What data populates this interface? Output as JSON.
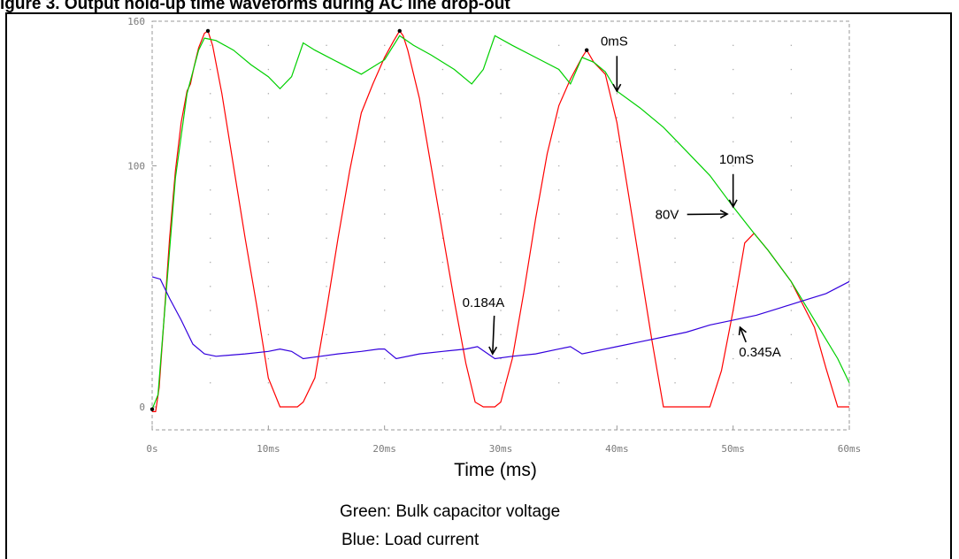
{
  "figure": {
    "heading": "igure 3. Output hold-up time waveforms during AC line drop-out",
    "legend_lines": [
      "Green: Bulk capacitor voltage",
      "Blue: Load current"
    ]
  },
  "chart_data": {
    "type": "line",
    "xlabel": "Time (ms)",
    "ylabel": "",
    "xlim": [
      0,
      60
    ],
    "ylim": [
      -5,
      160
    ],
    "x_ticks": [
      0,
      10,
      20,
      30,
      40,
      50,
      60
    ],
    "x_tick_labels": [
      "0s",
      "10ms",
      "20ms",
      "30ms",
      "40ms",
      "50ms",
      "60ms"
    ],
    "y_ticks": [
      0,
      100,
      160
    ],
    "y_tick_labels": [
      "0",
      "100",
      "160"
    ],
    "grid": true,
    "colors": {
      "rectified": "#ff0000",
      "bulk": "#00d000",
      "current": "#3300dd",
      "frame": "#999999",
      "grid": "#aaaaaa"
    },
    "series": [
      {
        "key": "rectified",
        "points": [
          [
            0,
            -2
          ],
          [
            0.3,
            -2
          ],
          [
            0.6,
            8
          ],
          [
            1.0,
            35
          ],
          [
            1.5,
            70
          ],
          [
            2.0,
            98
          ],
          [
            2.5,
            118
          ],
          [
            3.0,
            131
          ],
          [
            3.3,
            134
          ],
          [
            3.6,
            141
          ],
          [
            4.0,
            149
          ],
          [
            4.5,
            155
          ],
          [
            4.8,
            156
          ],
          [
            5.2,
            150
          ],
          [
            6.0,
            130
          ],
          [
            7.0,
            100
          ],
          [
            8.0,
            70
          ],
          [
            9.0,
            42
          ],
          [
            10.0,
            12
          ],
          [
            11.0,
            0
          ],
          [
            12.0,
            0
          ],
          [
            12.5,
            0
          ],
          [
            13.0,
            2
          ],
          [
            14.0,
            12
          ],
          [
            15.0,
            40
          ],
          [
            16.0,
            70
          ],
          [
            17.0,
            98
          ],
          [
            18.0,
            122
          ],
          [
            19.0,
            134
          ],
          [
            20.0,
            145
          ],
          [
            20.8,
            152
          ],
          [
            21.3,
            156
          ],
          [
            21.6,
            154
          ],
          [
            22.0,
            148
          ],
          [
            23.0,
            128
          ],
          [
            24.0,
            100
          ],
          [
            25.0,
            72
          ],
          [
            26.0,
            44
          ],
          [
            27.0,
            18
          ],
          [
            27.8,
            2
          ],
          [
            28.5,
            0
          ],
          [
            29.5,
            0
          ],
          [
            30.0,
            2
          ],
          [
            31.0,
            20
          ],
          [
            32.0,
            48
          ],
          [
            33.0,
            78
          ],
          [
            34.0,
            105
          ],
          [
            35.0,
            125
          ],
          [
            36.0,
            136
          ],
          [
            37.0,
            145
          ],
          [
            37.4,
            148
          ],
          [
            38.0,
            143
          ],
          [
            39.0,
            138
          ],
          [
            40.0,
            118
          ],
          [
            41.0,
            88
          ],
          [
            42.0,
            58
          ],
          [
            43.0,
            28
          ],
          [
            44.0,
            0
          ],
          [
            44.5,
            0
          ],
          [
            48.0,
            0
          ],
          [
            49.0,
            15
          ],
          [
            50.0,
            40
          ],
          [
            51.0,
            68
          ],
          [
            51.8,
            72
          ],
          [
            53.0,
            65
          ],
          [
            55.0,
            52
          ],
          [
            57.0,
            33
          ],
          [
            58.0,
            16
          ],
          [
            59.0,
            0
          ],
          [
            60.0,
            0
          ]
        ]
      },
      {
        "key": "bulk",
        "points": [
          [
            0,
            -1
          ],
          [
            0.5,
            5
          ],
          [
            1.0,
            35
          ],
          [
            2.0,
            95
          ],
          [
            3.0,
            130
          ],
          [
            4.0,
            148
          ],
          [
            4.5,
            153
          ],
          [
            5.5,
            152
          ],
          [
            7.0,
            148
          ],
          [
            8.5,
            142
          ],
          [
            10.0,
            137
          ],
          [
            11.0,
            132
          ],
          [
            12.0,
            137
          ],
          [
            13.0,
            151
          ],
          [
            14.0,
            148
          ],
          [
            16.0,
            143
          ],
          [
            18.0,
            138
          ],
          [
            20.0,
            144
          ],
          [
            21.3,
            154
          ],
          [
            22.5,
            150
          ],
          [
            24.0,
            146
          ],
          [
            26.0,
            140
          ],
          [
            27.5,
            134
          ],
          [
            28.5,
            140
          ],
          [
            29.5,
            154
          ],
          [
            31.0,
            150
          ],
          [
            33.0,
            145
          ],
          [
            35.0,
            140
          ],
          [
            36.0,
            134
          ],
          [
            37.0,
            145
          ],
          [
            38.0,
            143
          ],
          [
            39.0,
            139
          ],
          [
            40.0,
            131
          ],
          [
            42.0,
            124
          ],
          [
            44.0,
            116
          ],
          [
            46.0,
            106
          ],
          [
            48.0,
            96
          ],
          [
            50.0,
            83
          ],
          [
            51.8,
            72
          ],
          [
            53.0,
            65
          ],
          [
            55.0,
            52
          ],
          [
            57.0,
            36
          ],
          [
            58.0,
            28
          ],
          [
            59.0,
            20
          ],
          [
            60.0,
            10
          ]
        ]
      },
      {
        "key": "current",
        "points": [
          [
            0,
            54
          ],
          [
            0.7,
            53
          ],
          [
            1.5,
            45
          ],
          [
            2.5,
            36
          ],
          [
            3.5,
            26
          ],
          [
            4.5,
            22
          ],
          [
            5.5,
            21
          ],
          [
            8.0,
            22
          ],
          [
            10.0,
            23
          ],
          [
            11.0,
            24
          ],
          [
            12.0,
            23
          ],
          [
            13.0,
            20
          ],
          [
            14.5,
            21
          ],
          [
            16.0,
            22
          ],
          [
            18.0,
            23
          ],
          [
            19.5,
            24
          ],
          [
            20.0,
            24
          ],
          [
            21.0,
            20
          ],
          [
            23.0,
            22
          ],
          [
            25.0,
            23
          ],
          [
            27.0,
            24
          ],
          [
            28.0,
            25
          ],
          [
            29.5,
            20
          ],
          [
            31.0,
            21
          ],
          [
            33.0,
            22
          ],
          [
            35.0,
            24
          ],
          [
            36.0,
            25
          ],
          [
            37.0,
            22
          ],
          [
            38.0,
            23
          ],
          [
            40.0,
            25
          ],
          [
            42.0,
            27
          ],
          [
            44.0,
            29
          ],
          [
            46.0,
            31
          ],
          [
            48.0,
            34
          ],
          [
            50.0,
            36
          ],
          [
            52.0,
            38
          ],
          [
            54.0,
            41
          ],
          [
            56.0,
            44
          ],
          [
            58.0,
            47
          ],
          [
            60.0,
            52
          ]
        ]
      }
    ],
    "endpoint_marks": [
      [
        0,
        -1
      ],
      [
        4.8,
        156
      ],
      [
        21.3,
        156
      ],
      [
        37.4,
        148
      ]
    ],
    "annotations": [
      {
        "text": "0mS",
        "x": 38.6,
        "y": 150,
        "arrow_to": [
          40.0,
          131
        ]
      },
      {
        "text": "10mS",
        "x": 48.8,
        "y": 101,
        "arrow_to": [
          50.0,
          83
        ]
      },
      {
        "text": "80V",
        "x": 43.3,
        "y": 78,
        "arrow_to": [
          49.5,
          80
        ]
      },
      {
        "text": "0.184A",
        "x": 26.7,
        "y": 41.5,
        "arrow_to": [
          29.3,
          22
        ]
      },
      {
        "text": "0.345A",
        "x": 50.5,
        "y": 21,
        "arrow_to": [
          50.6,
          33
        ]
      }
    ]
  }
}
